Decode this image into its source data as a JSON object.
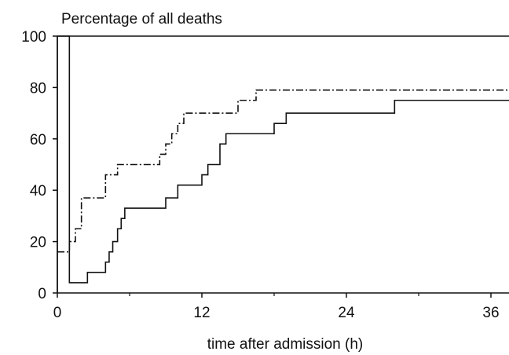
{
  "chart_data": {
    "type": "line",
    "title": "Percentage of all deaths",
    "xlabel": "time after admission (h)",
    "ylabel": "",
    "xlim": [
      0,
      37.5
    ],
    "ylim": [
      0,
      100
    ],
    "x_ticks": [
      0,
      12,
      24,
      36
    ],
    "x_minor_ticks": [
      6,
      18,
      30
    ],
    "y_ticks": [
      0,
      20,
      40,
      60,
      80,
      100
    ],
    "grid": false,
    "legend": "none",
    "series": [
      {
        "style": "solid",
        "color": "#111111",
        "x": [
          0,
          0,
          1,
          2.5,
          4,
          4.3,
          4.6,
          5,
          5.3,
          5.6,
          6,
          9,
          10,
          12,
          12.5,
          13.5,
          14,
          15,
          18,
          19,
          28
        ],
        "y": [
          0,
          100,
          4,
          8,
          12,
          16,
          20,
          25,
          29,
          33,
          33,
          37,
          42,
          46,
          50,
          58,
          62,
          62,
          66,
          70,
          75
        ]
      },
      {
        "style": "dash-dot",
        "color": "#111111",
        "x": [
          0,
          0.5,
          1,
          1.5,
          2,
          3.5,
          4,
          5,
          6,
          8.5,
          9,
          9.5,
          10,
          10.5,
          11,
          15,
          15.5,
          16.5,
          17
        ],
        "y": [
          16,
          16,
          20,
          25,
          37,
          37,
          46,
          50,
          50,
          54,
          58,
          62,
          66,
          70,
          70,
          75,
          75,
          79,
          79
        ]
      }
    ]
  }
}
